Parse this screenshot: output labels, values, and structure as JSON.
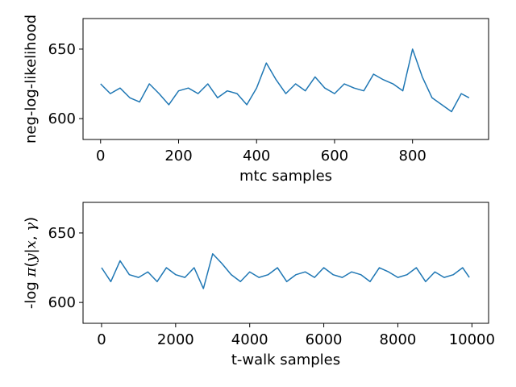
{
  "chart_data": [
    {
      "type": "line",
      "xlabel": "mtc samples",
      "ylabel": "neg-log-likelihood",
      "xlim": [
        -45,
        995
      ],
      "ylim": [
        585,
        672
      ],
      "xticks": [
        0,
        200,
        400,
        600,
        800
      ],
      "xtick_labels": [
        "0",
        "200",
        "400",
        "600",
        "800"
      ],
      "yticks": [
        600,
        650
      ],
      "ytick_labels": [
        "600",
        "650"
      ],
      "grid": false,
      "color": "#1f77b4",
      "series": [
        {
          "x": [
            0,
            25,
            50,
            75,
            100,
            125,
            150,
            175,
            200,
            225,
            250,
            275,
            300,
            325,
            350,
            375,
            400,
            425,
            450,
            475,
            500,
            525,
            550,
            575,
            600,
            625,
            650,
            675,
            700,
            725,
            750,
            775,
            800,
            825,
            850,
            875,
            900,
            925,
            945
          ],
          "y": [
            625,
            618,
            622,
            615,
            612,
            625,
            618,
            610,
            620,
            622,
            618,
            625,
            615,
            620,
            618,
            610,
            622,
            640,
            628,
            618,
            625,
            620,
            630,
            622,
            618,
            625,
            622,
            620,
            632,
            628,
            625,
            620,
            650,
            630,
            615,
            610,
            605,
            618,
            615
          ]
        }
      ]
    },
    {
      "type": "line",
      "xlabel": "t-walk samples",
      "ylabel_parts": [
        "-log ",
        "π",
        "(",
        "y",
        "|",
        "x",
        ", ",
        "γ",
        ")"
      ],
      "xlim": [
        -500,
        10450
      ],
      "ylim": [
        585,
        672
      ],
      "xticks": [
        0,
        2000,
        4000,
        6000,
        8000,
        10000
      ],
      "xtick_labels": [
        "0",
        "2000",
        "4000",
        "6000",
        "8000",
        "10000"
      ],
      "yticks": [
        600,
        650
      ],
      "ytick_labels": [
        "600",
        "650"
      ],
      "grid": false,
      "color": "#1f77b4",
      "series": [
        {
          "x": [
            0,
            250,
            500,
            750,
            1000,
            1250,
            1500,
            1750,
            2000,
            2250,
            2500,
            2750,
            3000,
            3250,
            3500,
            3750,
            4000,
            4250,
            4500,
            4750,
            5000,
            5250,
            5500,
            5750,
            6000,
            6250,
            6500,
            6750,
            7000,
            7250,
            7500,
            7750,
            8000,
            8250,
            8500,
            8750,
            9000,
            9250,
            9500,
            9750,
            9930
          ],
          "y": [
            625,
            615,
            630,
            620,
            618,
            622,
            615,
            625,
            620,
            618,
            625,
            610,
            635,
            628,
            620,
            615,
            622,
            618,
            620,
            625,
            615,
            620,
            622,
            618,
            625,
            620,
            618,
            622,
            620,
            615,
            625,
            622,
            618,
            620,
            625,
            615,
            622,
            618,
            620,
            625,
            618
          ]
        }
      ]
    }
  ]
}
